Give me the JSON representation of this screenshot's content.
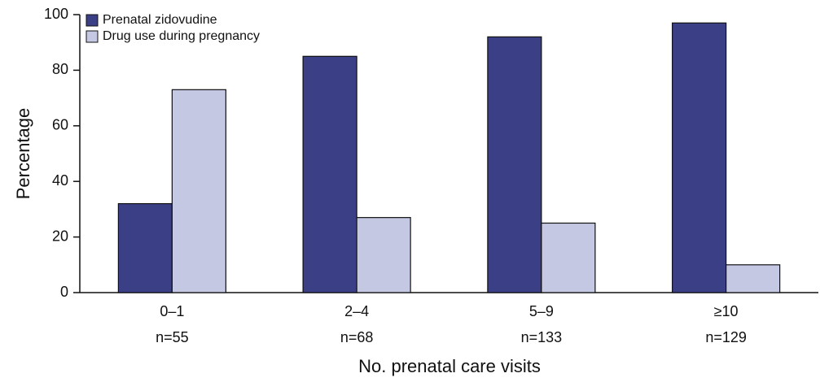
{
  "chart_data": {
    "type": "bar",
    "categories": [
      "0–1",
      "2–4",
      "5–9",
      "≥10"
    ],
    "n_labels": [
      "n=55",
      "n=68",
      "n=133",
      "n=129"
    ],
    "series": [
      {
        "name": "Prenatal zidovudine",
        "color": "#3b3f86",
        "values": [
          32,
          85,
          92,
          97
        ]
      },
      {
        "name": "Drug use during pregnancy",
        "color": "#c5c8e3",
        "values": [
          73,
          27,
          25,
          10
        ]
      }
    ],
    "ylim": [
      0,
      100
    ],
    "yticks": [
      0,
      20,
      40,
      60,
      80,
      100
    ],
    "y_label": "Percentage",
    "x_label": "No. prenatal care visits",
    "legend": "top-left"
  }
}
